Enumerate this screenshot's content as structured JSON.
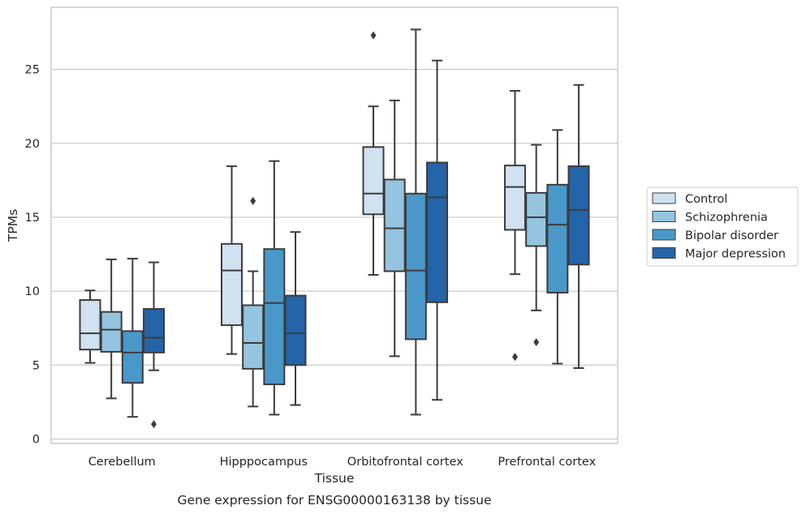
{
  "chart_data": {
    "type": "boxplot",
    "caption": "Gene expression for ENSG00000163138 by tissue",
    "xlabel": "Tissue",
    "ylabel": "TPMs",
    "ylim": [
      -0.3,
      29.2
    ],
    "yticks": [
      0,
      5,
      10,
      15,
      20,
      25
    ],
    "grid": "horizontal",
    "legend_position": "right",
    "categories": [
      "Cerebellum",
      "Hipppocampus",
      "Orbitofrontal cortex",
      "Prefrontal cortex"
    ],
    "series": [
      {
        "name": "Control",
        "color": "#d0e1f2",
        "boxes": [
          {
            "whislo": 5.15,
            "q1": 6.05,
            "med": 7.15,
            "q3": 9.4,
            "whishi": 10.05,
            "fliers": []
          },
          {
            "whislo": 5.75,
            "q1": 7.7,
            "med": 11.4,
            "q3": 13.2,
            "whishi": 18.45,
            "fliers": []
          },
          {
            "whislo": 11.1,
            "q1": 15.2,
            "med": 16.6,
            "q3": 19.75,
            "whishi": 22.5,
            "fliers": [
              27.3
            ]
          },
          {
            "whislo": 11.15,
            "q1": 14.15,
            "med": 17.05,
            "q3": 18.5,
            "whishi": 23.55,
            "fliers": [
              5.55
            ]
          }
        ]
      },
      {
        "name": "Schizophrenia",
        "color": "#94c4df",
        "boxes": [
          {
            "whislo": 2.75,
            "q1": 5.9,
            "med": 7.4,
            "q3": 8.6,
            "whishi": 12.15,
            "fliers": []
          },
          {
            "whislo": 2.2,
            "q1": 4.75,
            "med": 6.5,
            "q3": 9.05,
            "whishi": 11.35,
            "fliers": [
              16.1
            ]
          },
          {
            "whislo": 5.6,
            "q1": 11.35,
            "med": 14.25,
            "q3": 17.55,
            "whishi": 22.9,
            "fliers": []
          },
          {
            "whislo": 8.7,
            "q1": 13.05,
            "med": 15.0,
            "q3": 16.65,
            "whishi": 19.9,
            "fliers": [
              6.55
            ]
          }
        ]
      },
      {
        "name": "Bipolar disorder",
        "color": "#4a98c9",
        "boxes": [
          {
            "whislo": 1.5,
            "q1": 3.8,
            "med": 5.85,
            "q3": 7.3,
            "whishi": 12.2,
            "fliers": []
          },
          {
            "whislo": 1.65,
            "q1": 3.7,
            "med": 9.2,
            "q3": 12.85,
            "whishi": 18.8,
            "fliers": []
          },
          {
            "whislo": 1.65,
            "q1": 6.75,
            "med": 11.4,
            "q3": 16.6,
            "whishi": 27.7,
            "fliers": []
          },
          {
            "whislo": 5.1,
            "q1": 9.9,
            "med": 14.5,
            "q3": 17.2,
            "whishi": 20.9,
            "fliers": []
          }
        ]
      },
      {
        "name": "Major depression",
        "color": "#2464a8",
        "boxes": [
          {
            "whislo": 4.65,
            "q1": 5.85,
            "med": 6.85,
            "q3": 8.8,
            "whishi": 11.95,
            "fliers": [
              1.0
            ]
          },
          {
            "whislo": 2.3,
            "q1": 5.0,
            "med": 7.15,
            "q3": 9.7,
            "whishi": 14.0,
            "fliers": []
          },
          {
            "whislo": 2.65,
            "q1": 9.25,
            "med": 16.35,
            "q3": 18.7,
            "whishi": 25.6,
            "fliers": []
          },
          {
            "whislo": 4.8,
            "q1": 11.8,
            "med": 15.5,
            "q3": 18.45,
            "whishi": 23.95,
            "fliers": []
          }
        ]
      }
    ]
  }
}
